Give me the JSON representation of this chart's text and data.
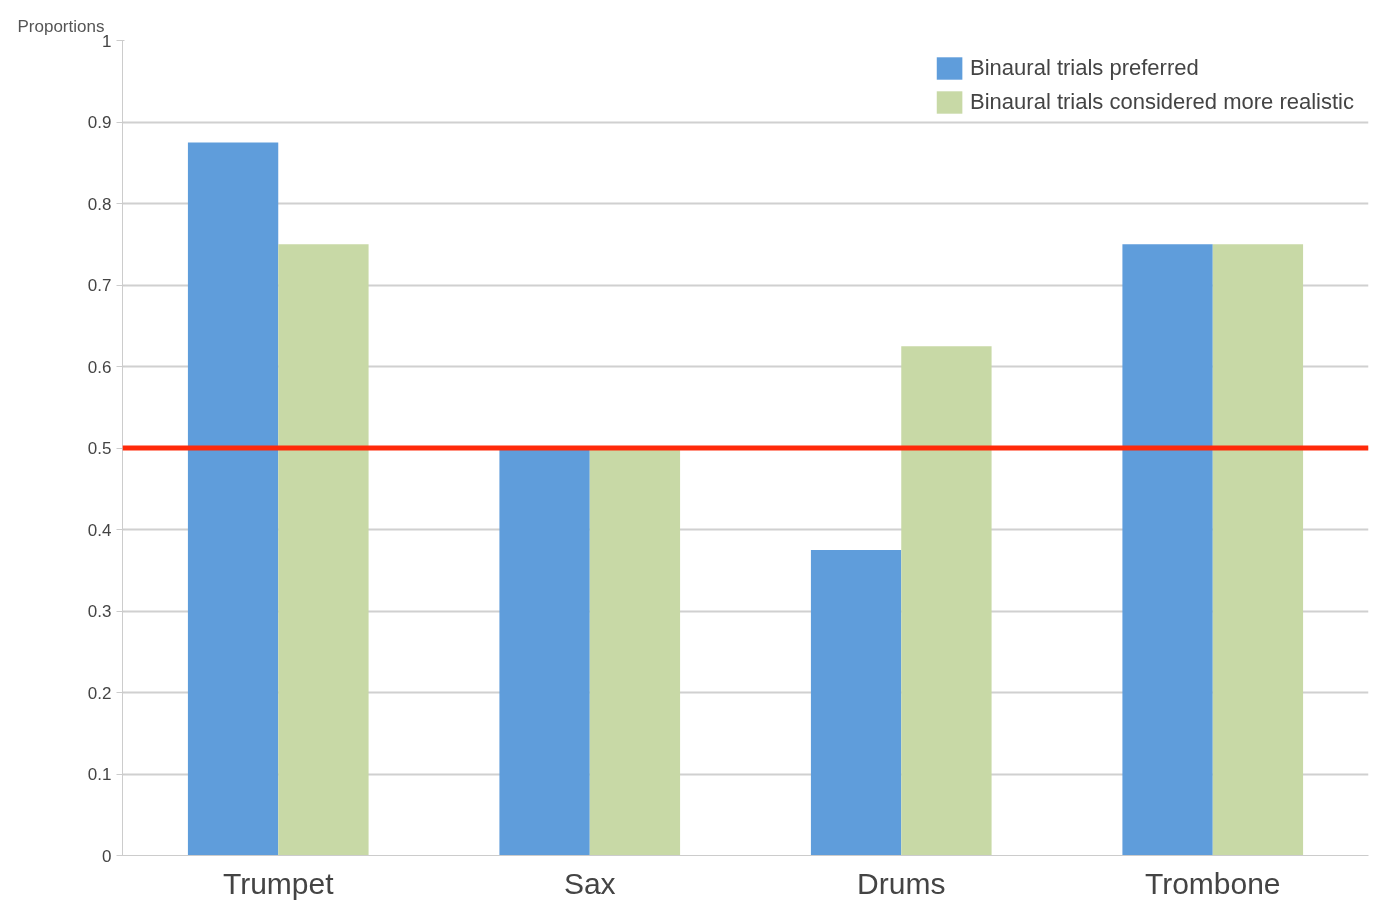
{
  "chart_data": {
    "type": "bar",
    "ylabel": "Proportions",
    "categories": [
      "Trumpet",
      "Sax",
      "Drums",
      "Trombone"
    ],
    "series": [
      {
        "name": "Binaural trials preferred",
        "color": "#5f9ddb",
        "values": [
          0.875,
          0.5,
          0.375,
          0.75
        ]
      },
      {
        "name": "Binaural trials considered more realistic",
        "color": "#c8d9a6",
        "values": [
          0.75,
          0.5,
          0.625,
          0.75
        ]
      }
    ],
    "ylim": [
      0,
      1
    ],
    "yticks": [
      0,
      0.1,
      0.2,
      0.3,
      0.4,
      0.5,
      0.6,
      0.7,
      0.8,
      0.9,
      1
    ],
    "grid": "y",
    "legend": "top right",
    "ref_lines": [
      {
        "axis": "y",
        "value": 0.5,
        "color": "#ff2a0a"
      }
    ]
  }
}
